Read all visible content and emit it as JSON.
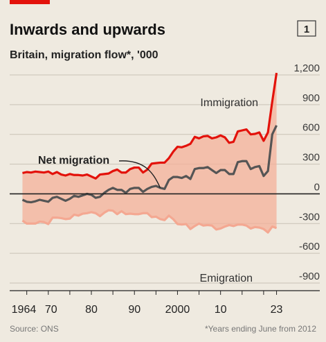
{
  "chart_data": {
    "type": "area",
    "title": "Inwards and upwards",
    "subtitle": "Britain, migration flow*, '000",
    "chart_number": "1",
    "source": "Source: ONS",
    "footnote": "*Years ending June from 2012",
    "ylim": [
      -900,
      1200
    ],
    "yticks": [
      1200,
      900,
      600,
      300,
      0,
      -300,
      -600,
      -900
    ],
    "ytick_labels": [
      "1,200",
      "900",
      "600",
      "300",
      "0",
      "-300",
      "-600",
      "-900"
    ],
    "xticks": [
      1964,
      1970,
      1980,
      1990,
      2000,
      2010,
      2023
    ],
    "xtick_labels": [
      "1964",
      "70",
      "80",
      "90",
      "2000",
      "10",
      "23"
    ],
    "grid": true,
    "x": [
      1964,
      1965,
      1966,
      1967,
      1968,
      1969,
      1970,
      1971,
      1972,
      1973,
      1974,
      1975,
      1976,
      1977,
      1978,
      1979,
      1980,
      1981,
      1982,
      1983,
      1984,
      1985,
      1986,
      1987,
      1988,
      1989,
      1990,
      1991,
      1992,
      1993,
      1994,
      1995,
      1996,
      1997,
      1998,
      1999,
      2000,
      2001,
      2002,
      2003,
      2004,
      2005,
      2006,
      2007,
      2008,
      2009,
      2010,
      2011,
      2012,
      2013,
      2014,
      2015,
      2016,
      2017,
      2018,
      2019,
      2020,
      2021,
      2022,
      2023
    ],
    "series": [
      {
        "name": "Immigration",
        "color": "#e3120b",
        "values": [
          210,
          220,
          215,
          225,
          220,
          215,
          225,
          200,
          220,
          195,
          185,
          200,
          190,
          190,
          185,
          195,
          175,
          155,
          195,
          200,
          205,
          230,
          245,
          215,
          215,
          250,
          265,
          265,
          215,
          245,
          305,
          310,
          315,
          315,
          360,
          425,
          475,
          470,
          485,
          505,
          575,
          560,
          580,
          585,
          560,
          570,
          590,
          570,
          515,
          525,
          630,
          640,
          650,
          600,
          605,
          620,
          535,
          620,
          930,
          1220
        ]
      },
      {
        "name": "Net migration",
        "color": "#555555",
        "values": [
          -60,
          -80,
          -85,
          -75,
          -60,
          -70,
          -80,
          -40,
          -30,
          -50,
          -70,
          -50,
          -20,
          -30,
          -15,
          0,
          -10,
          -40,
          -30,
          10,
          40,
          60,
          40,
          40,
          10,
          50,
          60,
          60,
          20,
          50,
          70,
          80,
          60,
          50,
          140,
          170,
          170,
          160,
          180,
          150,
          250,
          260,
          260,
          270,
          240,
          210,
          240,
          240,
          200,
          200,
          320,
          330,
          330,
          250,
          270,
          280,
          180,
          230,
          600,
          690
        ]
      },
      {
        "name": "Emigration",
        "color": "#f4a892",
        "values": [
          -270,
          -300,
          -300,
          -300,
          -280,
          -285,
          -305,
          -240,
          -240,
          -245,
          -255,
          -250,
          -210,
          -220,
          -200,
          -195,
          -185,
          -195,
          -225,
          -190,
          -165,
          -170,
          -205,
          -175,
          -205,
          -200,
          -205,
          -205,
          -195,
          -195,
          -235,
          -230,
          -255,
          -265,
          -220,
          -255,
          -305,
          -310,
          -305,
          -355,
          -325,
          -300,
          -320,
          -315,
          -320,
          -360,
          -350,
          -330,
          -315,
          -325,
          -310,
          -310,
          -320,
          -350,
          -335,
          -340,
          -355,
          -390,
          -330,
          -345
        ]
      }
    ],
    "annotations": [
      {
        "text": "Immigration",
        "series": "Immigration"
      },
      {
        "text": "Net migration",
        "series": "Net migration"
      },
      {
        "text": "Emigration",
        "series": "Emigration"
      }
    ]
  }
}
